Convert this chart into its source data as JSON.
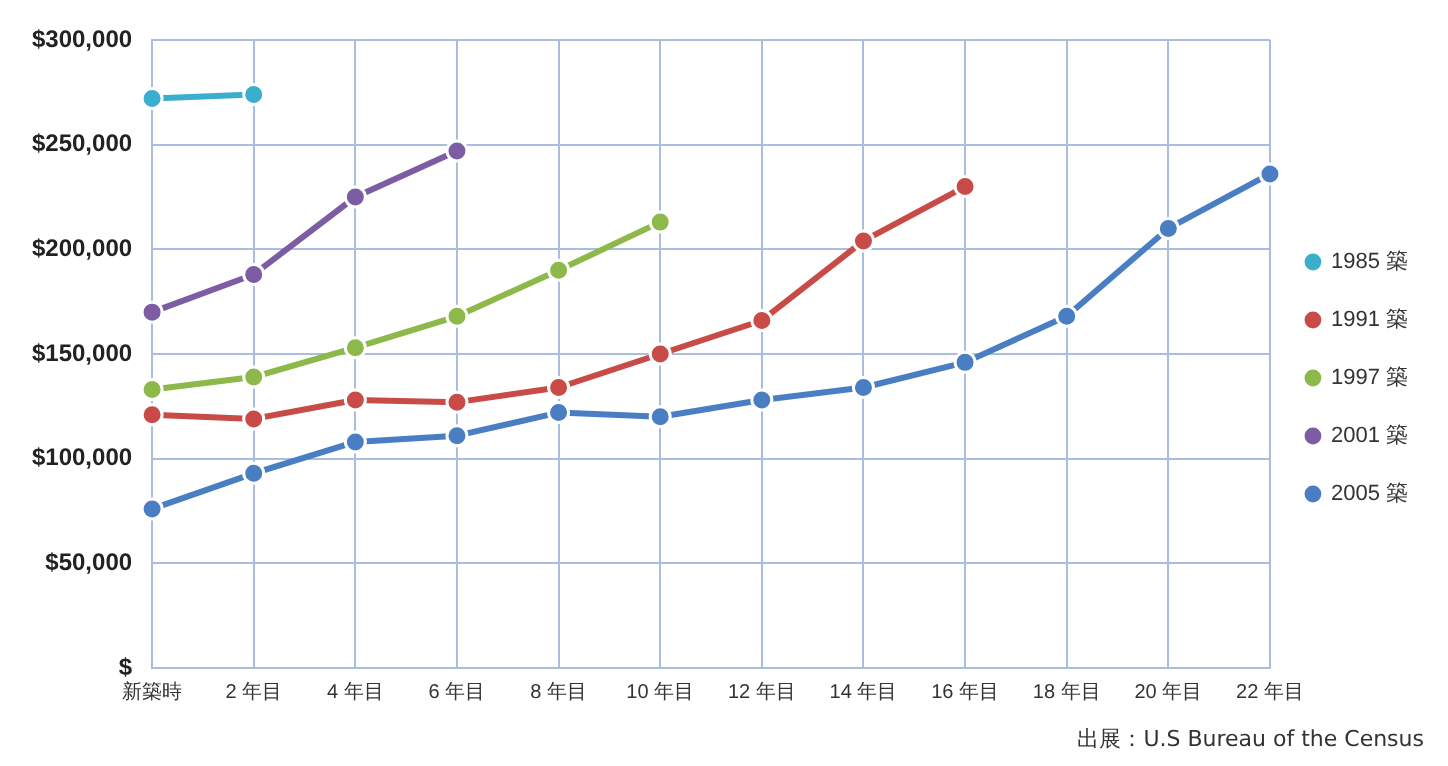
{
  "chart_data": {
    "type": "line",
    "categories": [
      "新築時",
      "2 年目",
      "4 年目",
      "6 年目",
      "8 年目",
      "10 年目",
      "12 年目",
      "14 年目",
      "16 年目",
      "18 年目",
      "20 年目",
      "22 年目"
    ],
    "series": [
      {
        "name": "1985 築",
        "color": "#3aaecc",
        "values": [
          272000,
          274000,
          null,
          null,
          null,
          null,
          null,
          null,
          null,
          null,
          null,
          null
        ]
      },
      {
        "name": "1991 築",
        "color": "#c84b47",
        "values": [
          121000,
          119000,
          128000,
          127000,
          134000,
          150000,
          166000,
          204000,
          230000,
          null,
          null,
          null
        ]
      },
      {
        "name": "1997 築",
        "color": "#8db84a",
        "values": [
          133000,
          139000,
          153000,
          168000,
          190000,
          213000,
          null,
          null,
          null,
          null,
          null,
          null
        ]
      },
      {
        "name": "2001 築",
        "color": "#7c5ca3",
        "values": [
          170000,
          188000,
          225000,
          247000,
          null,
          null,
          null,
          null,
          null,
          null,
          null,
          null
        ]
      },
      {
        "name": "2005 築",
        "color": "#4a7ec2",
        "values": [
          76000,
          93000,
          108000,
          111000,
          122000,
          120000,
          128000,
          134000,
          146000,
          168000,
          210000,
          236000
        ]
      }
    ],
    "ylim": [
      0,
      300000
    ],
    "yticks": [
      {
        "value": 0,
        "label": "$"
      },
      {
        "value": 50000,
        "label": "$50,000"
      },
      {
        "value": 100000,
        "label": "$100,000"
      },
      {
        "value": 150000,
        "label": "$150,000"
      },
      {
        "value": 200000,
        "label": "$200,000"
      },
      {
        "value": 250000,
        "label": "$250,000"
      },
      {
        "value": 300000,
        "label": "$300,000"
      }
    ],
    "grid": true,
    "legend": "right",
    "marker": "circle",
    "line_style": "solid",
    "annotations": [
      "出展：U.S Bureau of the Census"
    ]
  }
}
